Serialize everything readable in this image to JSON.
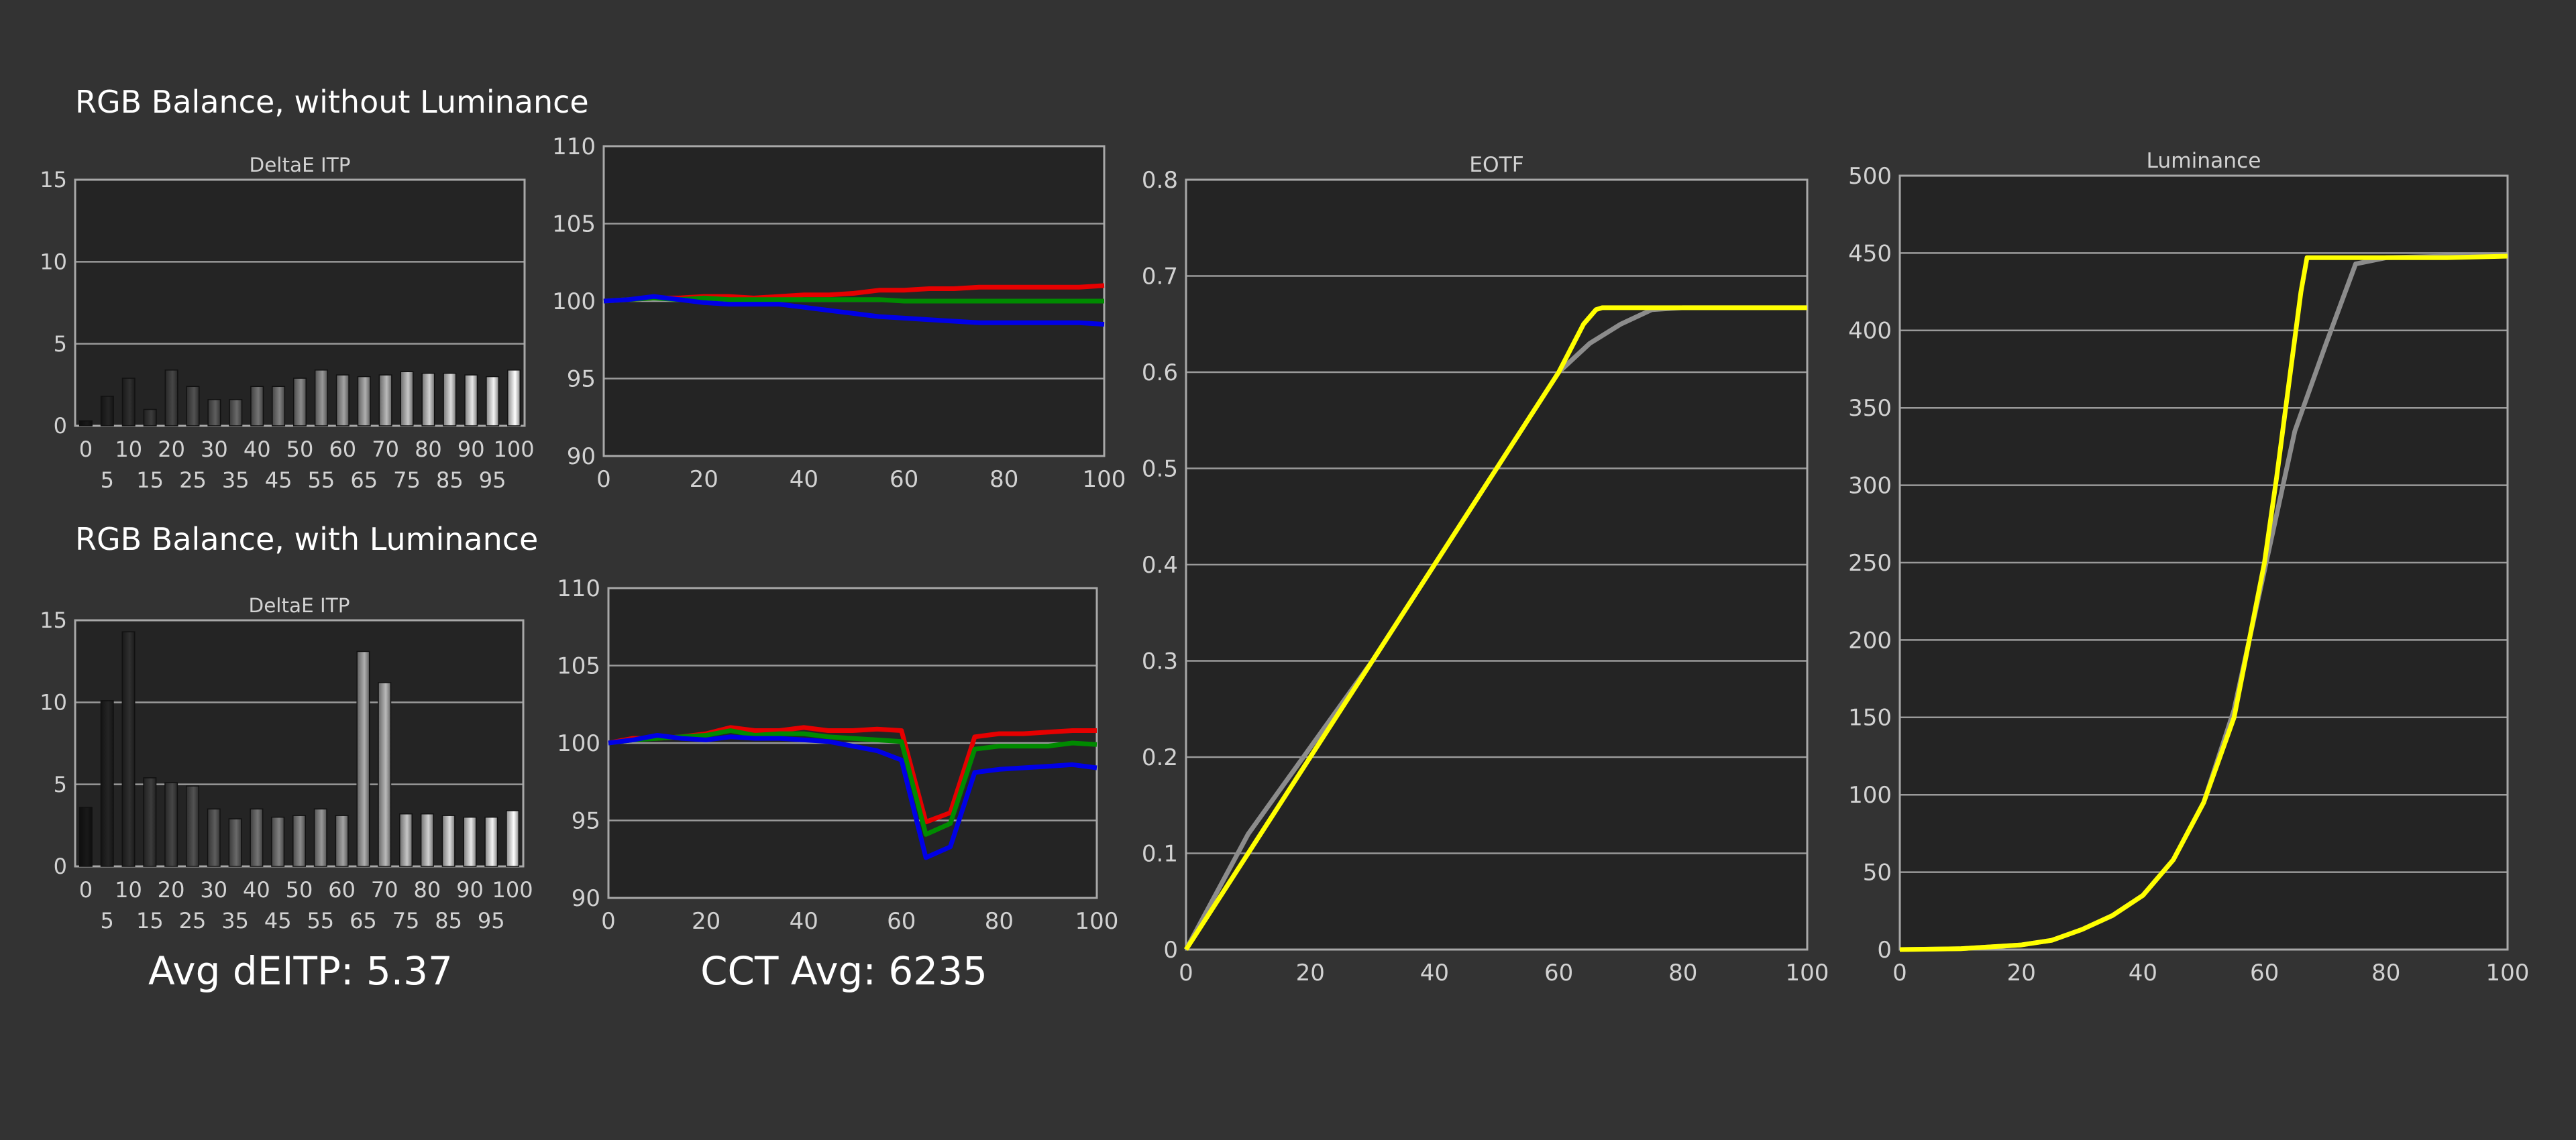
{
  "sections": [
    {
      "title": "RGB Balance, without Luminance"
    },
    {
      "title": "RGB Balance, with Luminance"
    }
  ],
  "summary": {
    "avg_deitp": "Avg dEITP: 5.37",
    "cct_avg": "CCT Avg: 6235"
  },
  "colors": {
    "background": "#333333",
    "plot_bg": "#242424",
    "grid": "#9a9a9a",
    "axis_text": "#d2d2d2",
    "red": "#e60000",
    "green": "#008a00",
    "blue": "#0000e6",
    "yellow": "#ffff00",
    "target": "#8c8c8c"
  },
  "chart_data": [
    {
      "id": "deltae-top",
      "type": "bar",
      "title": "DeltaE ITP",
      "categories": [
        0,
        5,
        10,
        15,
        20,
        25,
        30,
        35,
        40,
        45,
        50,
        55,
        60,
        65,
        70,
        75,
        80,
        85,
        90,
        95,
        100
      ],
      "category_labels_row1": [
        "0",
        "10",
        "20",
        "30",
        "40",
        "50",
        "60",
        "70",
        "80",
        "90",
        "100"
      ],
      "category_labels_row2": [
        "5",
        "15",
        "25",
        "35",
        "45",
        "55",
        "65",
        "75",
        "85",
        "95"
      ],
      "values": [
        0.3,
        1.8,
        2.9,
        1.0,
        3.4,
        2.4,
        1.6,
        1.6,
        2.4,
        2.4,
        2.9,
        3.4,
        3.1,
        3.0,
        3.1,
        3.3,
        3.2,
        3.2,
        3.1,
        3.0,
        3.4
      ],
      "ylim": [
        0,
        15
      ],
      "yticks": [
        "0",
        "5",
        "10",
        "15"
      ],
      "grid": true
    },
    {
      "id": "rgb-top",
      "type": "line",
      "x": [
        0,
        5,
        10,
        15,
        20,
        25,
        30,
        35,
        40,
        45,
        50,
        55,
        60,
        65,
        70,
        75,
        80,
        85,
        90,
        95,
        100
      ],
      "series": [
        {
          "color": "#e60000",
          "values": [
            100,
            100.1,
            100.2,
            100.2,
            100.3,
            100.3,
            100.2,
            100.3,
            100.4,
            100.4,
            100.5,
            100.7,
            100.7,
            100.8,
            100.8,
            100.9,
            100.9,
            100.9,
            100.9,
            100.9,
            101
          ]
        },
        {
          "color": "#008a00",
          "values": [
            100,
            100.1,
            100.2,
            100.1,
            100.2,
            100.1,
            100.1,
            100.1,
            100.1,
            100.1,
            100.1,
            100.1,
            100.0,
            100.0,
            100.0,
            100.0,
            100.0,
            100.0,
            100.0,
            100.0,
            100.0
          ]
        },
        {
          "color": "#0000e6",
          "values": [
            100,
            100.1,
            100.3,
            100.1,
            99.9,
            99.8,
            99.8,
            99.8,
            99.6,
            99.4,
            99.2,
            99.0,
            98.9,
            98.8,
            98.7,
            98.6,
            98.6,
            98.6,
            98.6,
            98.6,
            98.5
          ]
        }
      ],
      "xlim": [
        0,
        100
      ],
      "ylim": [
        90,
        110
      ],
      "xticks": [
        "0",
        "20",
        "40",
        "60",
        "80",
        "100"
      ],
      "yticks": [
        "90",
        "95",
        "100",
        "105",
        "110"
      ],
      "grid": true
    },
    {
      "id": "deltae-bottom",
      "type": "bar",
      "title": "DeltaE ITP",
      "categories": [
        0,
        5,
        10,
        15,
        20,
        25,
        30,
        35,
        40,
        45,
        50,
        55,
        60,
        65,
        70,
        75,
        80,
        85,
        90,
        95,
        100
      ],
      "category_labels_row1": [
        "0",
        "10",
        "20",
        "30",
        "40",
        "50",
        "60",
        "70",
        "80",
        "90",
        "100"
      ],
      "category_labels_row2": [
        "5",
        "15",
        "25",
        "35",
        "45",
        "55",
        "65",
        "75",
        "85",
        "95"
      ],
      "values": [
        3.6,
        10.1,
        14.3,
        5.4,
        5.1,
        4.9,
        3.5,
        2.9,
        3.5,
        3.0,
        3.1,
        3.5,
        3.1,
        13.1,
        11.2,
        3.2,
        3.2,
        3.1,
        3.0,
        3.0,
        3.4
      ],
      "ylim": [
        0,
        15
      ],
      "yticks": [
        "0",
        "5",
        "10",
        "15"
      ],
      "grid": true
    },
    {
      "id": "rgb-bottom",
      "type": "line",
      "x": [
        0,
        5,
        10,
        15,
        20,
        25,
        30,
        35,
        40,
        45,
        50,
        55,
        60,
        65,
        70,
        75,
        80,
        85,
        90,
        95,
        100
      ],
      "series": [
        {
          "color": "#e60000",
          "values": [
            100,
            100.3,
            100.3,
            100.4,
            100.6,
            101,
            100.8,
            100.8,
            101,
            100.8,
            100.8,
            100.9,
            100.8,
            94.9,
            95.5,
            100.4,
            100.6,
            100.6,
            100.7,
            100.8,
            100.8
          ]
        },
        {
          "color": "#008a00",
          "values": [
            100,
            100.2,
            100.3,
            100.4,
            100.5,
            100.8,
            100.5,
            100.6,
            100.6,
            100.4,
            100.3,
            100.2,
            100.1,
            94.1,
            94.8,
            99.6,
            99.8,
            99.8,
            99.8,
            100,
            99.9
          ]
        },
        {
          "color": "#0000e6",
          "values": [
            100,
            100.2,
            100.5,
            100.3,
            100.2,
            100.4,
            100.3,
            100.3,
            100.2,
            100.1,
            99.8,
            99.5,
            98.9,
            92.6,
            93.3,
            98.1,
            98.3,
            98.4,
            98.5,
            98.6,
            98.4
          ]
        }
      ],
      "xlim": [
        0,
        100
      ],
      "ylim": [
        90,
        110
      ],
      "xticks": [
        "0",
        "20",
        "40",
        "60",
        "80",
        "100"
      ],
      "yticks": [
        "90",
        "95",
        "100",
        "105",
        "110"
      ],
      "grid": true
    },
    {
      "id": "eotf",
      "type": "line",
      "title": "EOTF",
      "series": [
        {
          "color": "#8c8c8c",
          "x": [
            0,
            10,
            20,
            30,
            40,
            50,
            60,
            65,
            70,
            75,
            80,
            90,
            100
          ],
          "y": [
            0,
            0.12,
            0.21,
            0.3,
            0.4,
            0.5,
            0.6,
            0.63,
            0.65,
            0.665,
            0.667,
            0.667,
            0.667
          ]
        },
        {
          "color": "#ffff00",
          "x": [
            0,
            10,
            20,
            30,
            40,
            50,
            60,
            62,
            64,
            66,
            67,
            70,
            80,
            90,
            100
          ],
          "y": [
            0,
            0.1,
            0.2,
            0.3,
            0.4,
            0.5,
            0.6,
            0.625,
            0.65,
            0.665,
            0.667,
            0.667,
            0.667,
            0.667,
            0.667
          ]
        }
      ],
      "xlim": [
        0,
        100
      ],
      "ylim": [
        0,
        0.8
      ],
      "xticks": [
        "0",
        "20",
        "40",
        "60",
        "80",
        "100"
      ],
      "yticks": [
        "0",
        "0.1",
        "0.2",
        "0.3",
        "0.4",
        "0.5",
        "0.6",
        "0.7",
        "0.8"
      ],
      "grid": true
    },
    {
      "id": "luminance",
      "type": "line",
      "title": "Luminance",
      "series": [
        {
          "color": "#8c8c8c",
          "x": [
            0,
            10,
            20,
            25,
            30,
            35,
            40,
            45,
            50,
            55,
            60,
            65,
            70,
            75,
            80,
            90,
            100
          ],
          "y": [
            0,
            0.5,
            3,
            6,
            13,
            22,
            35,
            58,
            95,
            155,
            245,
            335,
            390,
            443,
            447,
            448,
            448
          ]
        },
        {
          "color": "#ffff00",
          "x": [
            0,
            10,
            20,
            25,
            30,
            35,
            40,
            45,
            50,
            55,
            60,
            62,
            64,
            66,
            67,
            70,
            80,
            90,
            100
          ],
          "y": [
            0,
            0.5,
            3,
            6,
            13,
            22,
            35,
            58,
            95,
            150,
            250,
            305,
            365,
            425,
            447,
            447,
            447,
            447,
            448
          ]
        }
      ],
      "xlim": [
        0,
        100
      ],
      "ylim": [
        0,
        500
      ],
      "xticks": [
        "0",
        "20",
        "40",
        "60",
        "80",
        "100"
      ],
      "yticks": [
        "0",
        "50",
        "100",
        "150",
        "200",
        "250",
        "300",
        "350",
        "400",
        "450",
        "500"
      ],
      "grid": true
    }
  ]
}
